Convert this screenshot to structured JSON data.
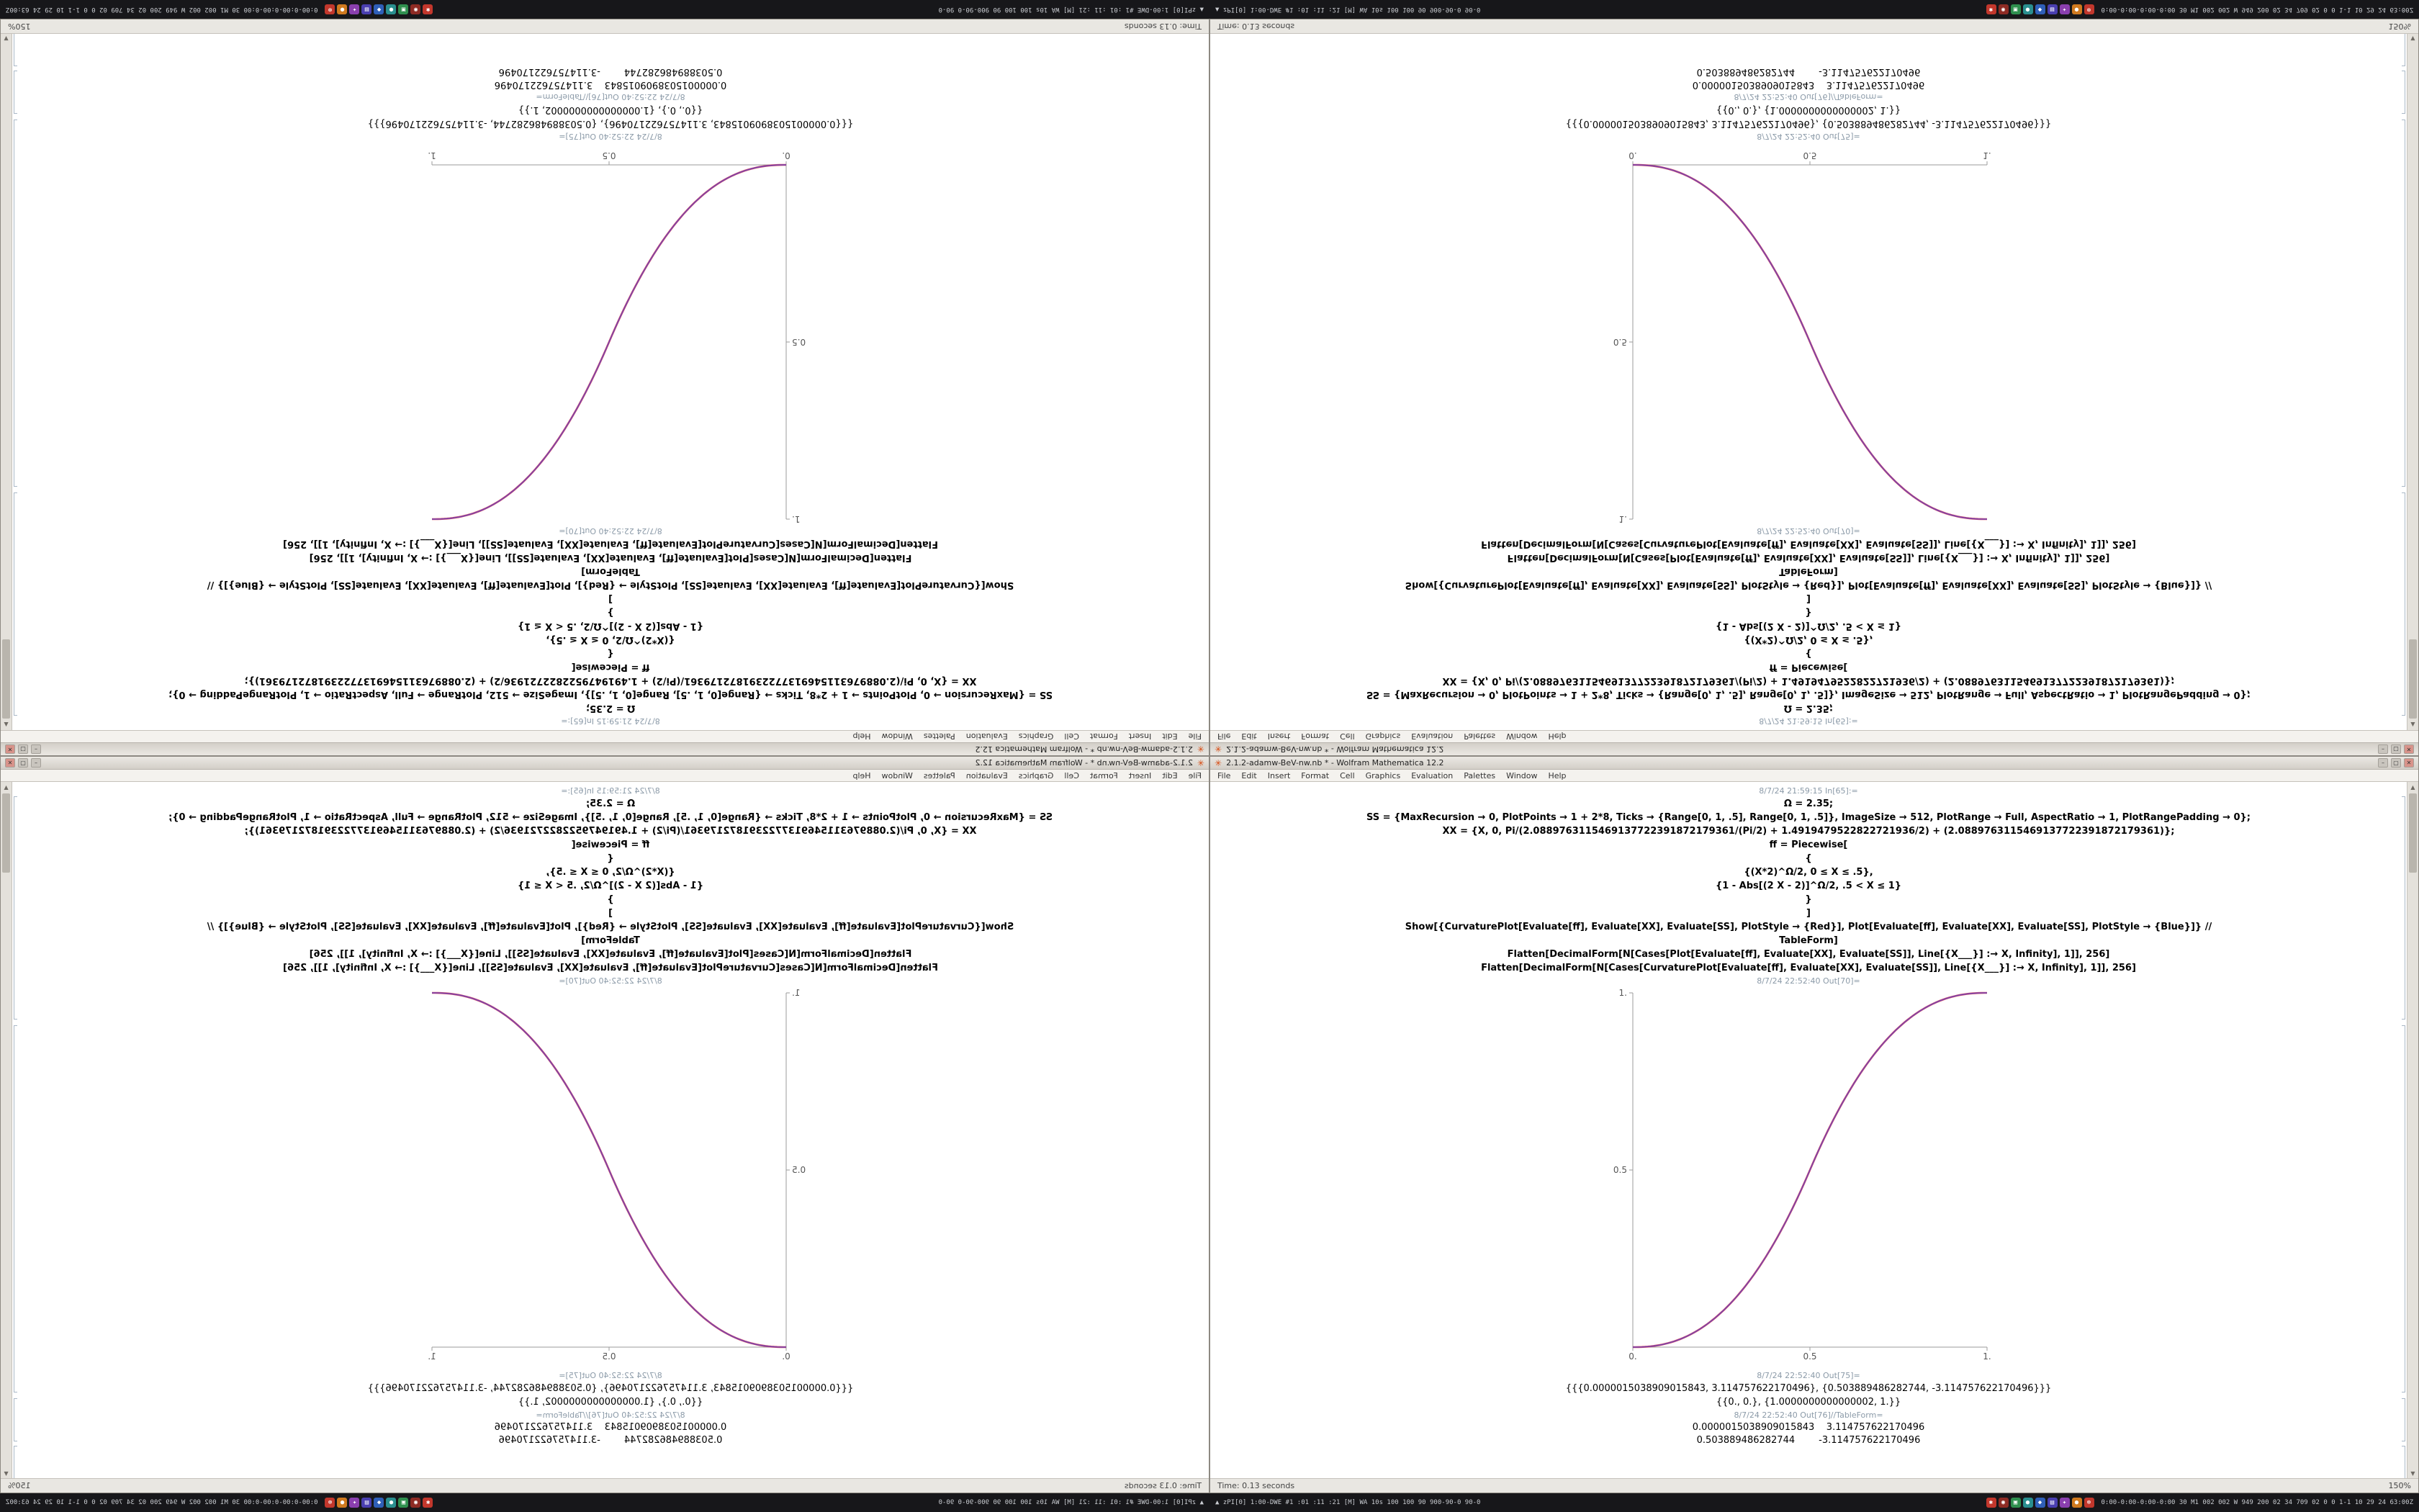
{
  "window": {
    "title": "2.1.2-adamw-BeV-nw.nb * - Wolfram Mathematica 12.2",
    "buttons": {
      "minimize": "–",
      "maximize": "▢",
      "close": "✕"
    },
    "menu": [
      "File",
      "Edit",
      "Insert",
      "Format",
      "Cell",
      "Graphics",
      "Evaluation",
      "Palettes",
      "Window",
      "Help"
    ],
    "logo_glyph": "✳"
  },
  "cells": {
    "in_label": "8/7/24 21:59:15 In[65]:=",
    "code_lines": [
      "Ω = 2.35;",
      "SS = {MaxRecursion → 0, PlotPoints → 1 + 2*8, Ticks → {Range[0, 1, .5], Range[0, 1, .5]}, ImageSize → 512, PlotRange → Full, AspectRatio → 1, PlotRangePadding → 0};",
      "XX = {X, 0, Pi/(2.0889763115469137722391872179361/(Pi/2) + 1.4919479522822721936/2) + (2.0889763115469137722391872179361)};",
      "ff = Piecewise[",
      "{",
      "{(X*2)^Ω/2, 0 ≤ X ≤ .5},",
      "{1 - Abs[(2 X - 2)]^Ω/2, .5 < X ≤ 1}",
      "}",
      "]",
      "Show[{CurvaturePlot[Evaluate[ff], Evaluate[XX], Evaluate[SS], PlotStyle → {Red}], Plot[Evaluate[ff], Evaluate[XX], Evaluate[SS], PlotStyle → {Blue}]} //",
      "TableForm]",
      "Flatten[DecimalForm[N[Cases[Plot[Evaluate[ff], Evaluate[XX], Evaluate[SS]], Line[{X___}] :→ X, Infinity], 1]], 256]",
      "Flatten[DecimalForm[N[Cases[CurvaturePlot[Evaluate[ff], Evaluate[XX], Evaluate[SS]], Line[{X___}] :→ X, Infinity], 1]], 256]"
    ],
    "out_plot_label": "8/7/24 22:52:40 Out[70]=",
    "out_list_label": "8/7/24 22:52:40 Out[75]=",
    "out_list_1": "{{{0.0000015038909015843, 3.114757622170496}, {0.503889486282744, -3.114757622170496}}}",
    "out_list_2": "{{0., 0.}, {1.0000000000000002, 1.}}",
    "out_table_label": "8/7/24 22:52:40 Out[76]//TableForm=",
    "table_rows": [
      "0.0000015038909015843    3.114757622170496",
      "0.503889486282744        -3.114757622170496"
    ]
  },
  "chart_data": {
    "type": "line",
    "title": "",
    "xlabel": "",
    "ylabel": "",
    "x_range": [
      0,
      1
    ],
    "y_range": [
      0,
      1
    ],
    "grid": false,
    "legend": "none",
    "series_note": "piecewise sigmoid blend: (2x)^Ω/2 for 0≤x≤.5, 1-(2-2x)^Ω/2 for .5<x≤1, Ω=2.35; red CurvaturePlot overlaid with blue Plot"
  },
  "plot": {
    "omega": 2.35,
    "x_tick_labels": [
      "0.",
      "0.5",
      "1."
    ],
    "y_tick_labels": [
      "0.5",
      "1."
    ],
    "curve_color_red": "#cf3553",
    "curve_color_blue": "#5642c8",
    "image_size": 512
  },
  "statusbar": {
    "time_text": "Time: 0.13 seconds",
    "zoom": "150%"
  },
  "panel": {
    "left_text": "▲ zPI[0]  1:00-DWE #1 :01 :11 :21 [M] WA 10s 100 100 90 900-90-0 90-0",
    "right_text": "0:00-0:00-0:00-0:00 30 M1 002 002 W 949 200 02 34 709 02 0 0 1-1 10 29 24 63:00Z",
    "tray_icons": [
      {
        "name": "tray-icon-red",
        "color": "#c2372c",
        "glyph": "✱"
      },
      {
        "name": "tray-icon-darkred",
        "color": "#8e2b24",
        "glyph": "◉"
      },
      {
        "name": "tray-icon-green",
        "color": "#2f8f4e",
        "glyph": "▣"
      },
      {
        "name": "tray-icon-teal",
        "color": "#2a8f8f",
        "glyph": "●"
      },
      {
        "name": "tray-icon-blue",
        "color": "#2f5fb8",
        "glyph": "◆"
      },
      {
        "name": "tray-icon-indigo",
        "color": "#4a3fb0",
        "glyph": "▤"
      },
      {
        "name": "tray-icon-purple",
        "color": "#8a3fae",
        "glyph": "✦"
      },
      {
        "name": "tray-icon-orange",
        "color": "#d07a1f",
        "glyph": "●"
      },
      {
        "name": "tray-icon-red2",
        "color": "#c2372c",
        "glyph": "⊗"
      }
    ]
  },
  "scrollbar": {
    "up_glyph": "▲",
    "down_glyph": "▼"
  }
}
